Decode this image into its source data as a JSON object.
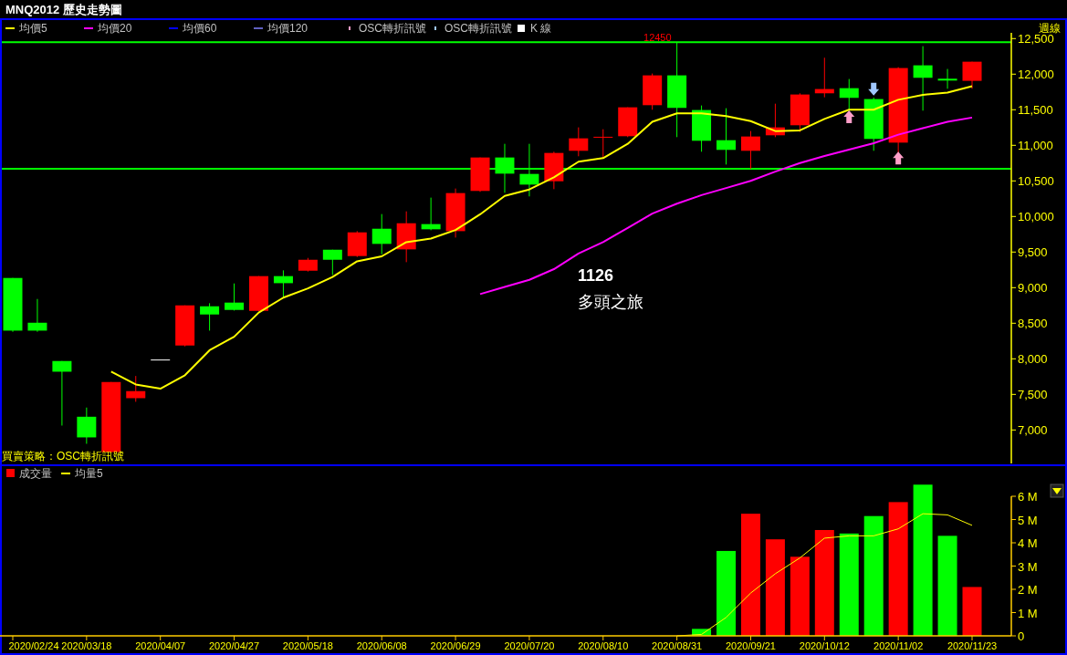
{
  "chart_data": [
    {
      "type": "candlestick",
      "title": "MNQ2012 歷史走勢圖",
      "ylabel": "週線",
      "legend": "top left",
      "tick_labels": "y",
      "categories": [
        null,
        null,
        null,
        null,
        null,
        null,
        null,
        null,
        null,
        null,
        null,
        null,
        null,
        null,
        null,
        null,
        null,
        null,
        null,
        null,
        null,
        null,
        null,
        null,
        null,
        null,
        null,
        null,
        null,
        null,
        null,
        null,
        null,
        null,
        null,
        null,
        null,
        null,
        null,
        null
      ],
      "ylim": [
        6530,
        12760
      ],
      "yticks": [
        {
          "value": 7000,
          "label": "7,000"
        },
        {
          "value": 7500,
          "label": "7,500"
        },
        {
          "value": 8000,
          "label": "8,000"
        },
        {
          "value": 8500,
          "label": "8,500"
        },
        {
          "value": 9000,
          "label": "9,000"
        },
        {
          "value": 9500,
          "label": "9,500"
        },
        {
          "value": 10000,
          "label": "10,000"
        },
        {
          "value": 10500,
          "label": "10,500"
        },
        {
          "value": 11000,
          "label": "11,000"
        },
        {
          "value": 11500,
          "label": "11,500"
        },
        {
          "value": 12000,
          "label": "12,000"
        },
        {
          "value": 12500,
          "label": "12,500"
        }
      ],
      "series": [
        {
          "name": "均價5",
          "type": "line",
          "color": "#ffff00",
          "values": [
            null,
            null,
            null,
            null,
            7820,
            7640,
            7580,
            7770,
            8120,
            8310,
            8650,
            8860,
            8990,
            9150,
            9370,
            9440,
            9640,
            9690,
            9810,
            10030,
            10290,
            10380,
            10550,
            10770,
            10820,
            11020,
            11330,
            11450,
            11450,
            11410,
            11340,
            11200,
            11210,
            11370,
            11500,
            11500,
            11640,
            11710,
            11740,
            11830
          ]
        },
        {
          "name": "均價20",
          "type": "line",
          "color": "#ff00ff",
          "values": [
            null,
            null,
            null,
            null,
            null,
            null,
            null,
            null,
            null,
            null,
            null,
            null,
            null,
            null,
            null,
            null,
            null,
            null,
            null,
            8910,
            9010,
            9110,
            9260,
            9480,
            9640,
            9840,
            10040,
            10180,
            10300,
            10400,
            10500,
            10630,
            10750,
            10850,
            10940,
            11030,
            11150,
            11240,
            11330,
            11390
          ]
        },
        {
          "name": "均價60",
          "type": "line",
          "color": "#0000ff",
          "values": [
            null,
            null,
            null,
            null,
            null,
            null,
            null,
            null,
            null,
            null,
            null,
            null,
            null,
            null,
            null,
            null,
            null,
            null,
            null,
            null,
            null,
            null,
            null,
            null,
            null,
            null,
            null,
            null,
            null,
            null,
            null,
            null,
            null,
            null,
            null,
            null,
            null,
            null,
            null,
            null
          ]
        },
        {
          "name": "均價120",
          "type": "line",
          "color": "#6060c0",
          "values": [
            null,
            null,
            null,
            null,
            null,
            null,
            null,
            null,
            null,
            null,
            null,
            null,
            null,
            null,
            null,
            null,
            null,
            null,
            null,
            null,
            null,
            null,
            null,
            null,
            null,
            null,
            null,
            null,
            null,
            null,
            null,
            null,
            null,
            null,
            null,
            null,
            null,
            null,
            null,
            null
          ]
        },
        {
          "name": "OSC轉折訊號",
          "type": "scatter",
          "marker": "triangle",
          "color": "#ff9ec8",
          "values": [
            null,
            null,
            null,
            null,
            null,
            null,
            null,
            null,
            null,
            null,
            null,
            null,
            null,
            null,
            null,
            null,
            null,
            null,
            null,
            null,
            null,
            null,
            null,
            null,
            null,
            null,
            null,
            null,
            null,
            null,
            null,
            null,
            null,
            null,
            11400,
            null,
            10820,
            null,
            null,
            null
          ]
        },
        {
          "name": "OSC轉折訊號",
          "type": "scatter",
          "marker": "triangle",
          "color": "#a0c8ff",
          "values": [
            null,
            null,
            null,
            null,
            null,
            null,
            null,
            null,
            null,
            null,
            null,
            null,
            null,
            null,
            null,
            null,
            null,
            null,
            null,
            null,
            null,
            null,
            null,
            null,
            null,
            null,
            null,
            null,
            null,
            null,
            null,
            null,
            null,
            null,
            null,
            11790,
            null,
            null,
            null,
            null
          ]
        },
        {
          "name": "K 線",
          "color": "#ffffff",
          "colors": [
            "#00ff00",
            "#00ff00",
            "#00ff00",
            "#00ff00",
            "#ff0000",
            "#ff0000",
            "#ffffff",
            "#ff0000",
            "#00ff00",
            "#00ff00",
            "#ff0000",
            "#00ff00",
            "#ff0000",
            "#00ff00",
            "#ff0000",
            "#00ff00",
            "#ff0000",
            "#00ff00",
            "#ff0000",
            "#ff0000",
            "#00ff00",
            "#00ff00",
            "#ff0000",
            "#ff0000",
            "#ff0000",
            "#ff0000",
            "#ff0000",
            "#00ff00",
            "#00ff00",
            "#00ff00",
            "#ff0000",
            "#ff0000",
            "#ff0000",
            "#ff0000",
            "#00ff00",
            "#00ff00",
            "#ff0000",
            "#00ff00",
            "#00ff00",
            "#ff0000"
          ],
          "ohlc": [
            [
              9136,
              9136,
              8380,
              8396
            ],
            [
              8507,
              8841,
              8380,
              8396
            ],
            [
              7969,
              7969,
              7062,
              7819
            ],
            [
              7186,
              7315,
              6806,
              6896
            ],
            [
              6690,
              7674,
              6680,
              7674
            ],
            [
              7447,
              7759,
              7396,
              7546
            ],
            [
              7990,
              7990,
              7990,
              7990
            ],
            [
              8187,
              8751,
              8174,
              8751
            ],
            [
              8738,
              8781,
              8396,
              8623
            ],
            [
              8790,
              9059,
              8678,
              8687
            ],
            [
              8674,
              9162,
              8674,
              9162
            ],
            [
              9162,
              9243,
              8849,
              9063
            ],
            [
              9238,
              9418,
              9226,
              9392
            ],
            [
              9533,
              9533,
              9179,
              9392
            ],
            [
              9444,
              9794,
              9431,
              9777
            ],
            [
              9828,
              10034,
              9469,
              9615
            ],
            [
              9538,
              10072,
              9358,
              9905
            ],
            [
              9893,
              10265,
              9807,
              9820
            ],
            [
              9794,
              10393,
              9704,
              10329
            ],
            [
              10359,
              10829,
              10346,
              10829
            ],
            [
              10829,
              11021,
              10333,
              10602
            ],
            [
              10598,
              11021,
              10282,
              10448
            ],
            [
              10495,
              10910,
              10384,
              10893
            ],
            [
              10923,
              11252,
              10846,
              11098
            ],
            [
              11110,
              11226,
              10816,
              11120
            ],
            [
              11128,
              11534,
              11115,
              11534
            ],
            [
              11564,
              12009,
              11500,
              11983
            ],
            [
              11983,
              12450,
              11115,
              11526
            ],
            [
              11496,
              11560,
              10910,
              11064
            ],
            [
              11072,
              11521,
              10730,
              10936
            ],
            [
              10923,
              11201,
              10670,
              11124
            ],
            [
              11141,
              11585,
              11115,
              11252
            ],
            [
              11282,
              11731,
              11188,
              11714
            ],
            [
              11731,
              12231,
              11675,
              11791
            ],
            [
              11803,
              11932,
              11496,
              11667
            ],
            [
              11650,
              11671,
              10923,
              11090
            ],
            [
              11038,
              12098,
              10889,
              12086
            ],
            [
              12124,
              12393,
              11487,
              11949
            ],
            [
              11936,
              12073,
              11795,
              11910
            ],
            [
              11906,
              12175,
              11795,
              12175
            ]
          ]
        }
      ],
      "ref_lines": [
        {
          "axis": "y",
          "value": 12450,
          "color": "#00ff00"
        },
        {
          "axis": "y",
          "value": 10670,
          "color": "#00ff00"
        }
      ],
      "annotations": [
        "1126",
        "多頭之旅",
        {
          "text": "12450",
          "y": 12450
        },
        "買賣策略：OSC轉折訊號"
      ]
    },
    {
      "type": "bar",
      "legend": "top left",
      "categories": [
        "2020/02/24",
        null,
        null,
        "2020/03/18",
        null,
        null,
        "2020/04/07",
        null,
        null,
        "2020/04/27",
        null,
        null,
        "2020/05/18",
        null,
        null,
        "2020/06/08",
        null,
        null,
        "2020/06/29",
        null,
        null,
        "2020/07/20",
        null,
        null,
        "2020/08/10",
        null,
        null,
        "2020/08/31",
        null,
        null,
        "2020/09/21",
        null,
        null,
        "2020/10/12",
        null,
        null,
        "2020/11/02",
        null,
        null,
        "2020/11/23"
      ],
      "ylim": [
        0,
        6.55
      ],
      "yticks": [
        0,
        {
          "value": 1,
          "label": "1 M"
        },
        {
          "value": 2,
          "label": "2 M"
        },
        {
          "value": 3,
          "label": "3 M"
        },
        {
          "value": 4,
          "label": "4 M"
        },
        {
          "value": 5,
          "label": "5 M"
        },
        {
          "value": 6,
          "label": "6 M"
        }
      ],
      "series": [
        {
          "name": "成交量",
          "color": "#ff0000",
          "colors": [
            "#00ff00",
            "#00ff00",
            "#00ff00",
            "#00ff00",
            "#ff0000",
            "#ff0000",
            "#ffffff",
            "#ff0000",
            "#00ff00",
            "#00ff00",
            "#ff0000",
            "#00ff00",
            "#ff0000",
            "#00ff00",
            "#ff0000",
            "#00ff00",
            "#ff0000",
            "#00ff00",
            "#ff0000",
            "#ff0000",
            "#00ff00",
            "#00ff00",
            "#ff0000",
            "#ff0000",
            "#ff0000",
            "#ff0000",
            "#ff0000",
            "#00ff00",
            "#00ff00",
            "#00ff00",
            "#ff0000",
            "#ff0000",
            "#ff0000",
            "#ff0000",
            "#00ff00",
            "#00ff00",
            "#ff0000",
            "#00ff00",
            "#00ff00",
            "#ff0000"
          ],
          "values": [
            0,
            0,
            0,
            0,
            0,
            0,
            0,
            0,
            0,
            0,
            0,
            0,
            0,
            0,
            0,
            0,
            0,
            0,
            0,
            0,
            0,
            0,
            0,
            0,
            0,
            0,
            0,
            0,
            0.3,
            3.65,
            5.25,
            4.15,
            3.4,
            4.55,
            4.4,
            5.15,
            5.75,
            6.5,
            4.3,
            2.1
          ]
        },
        {
          "name": "均量5",
          "type": "line",
          "color": "#ffff00",
          "values": [
            null,
            null,
            null,
            null,
            null,
            null,
            null,
            null,
            null,
            null,
            null,
            null,
            null,
            null,
            null,
            null,
            null,
            null,
            null,
            null,
            null,
            null,
            null,
            null,
            null,
            null,
            null,
            0,
            0.06,
            0.79,
            1.84,
            2.67,
            3.35,
            4.2,
            4.3,
            4.3,
            4.6,
            5.25,
            5.2,
            4.75
          ]
        }
      ]
    }
  ]
}
